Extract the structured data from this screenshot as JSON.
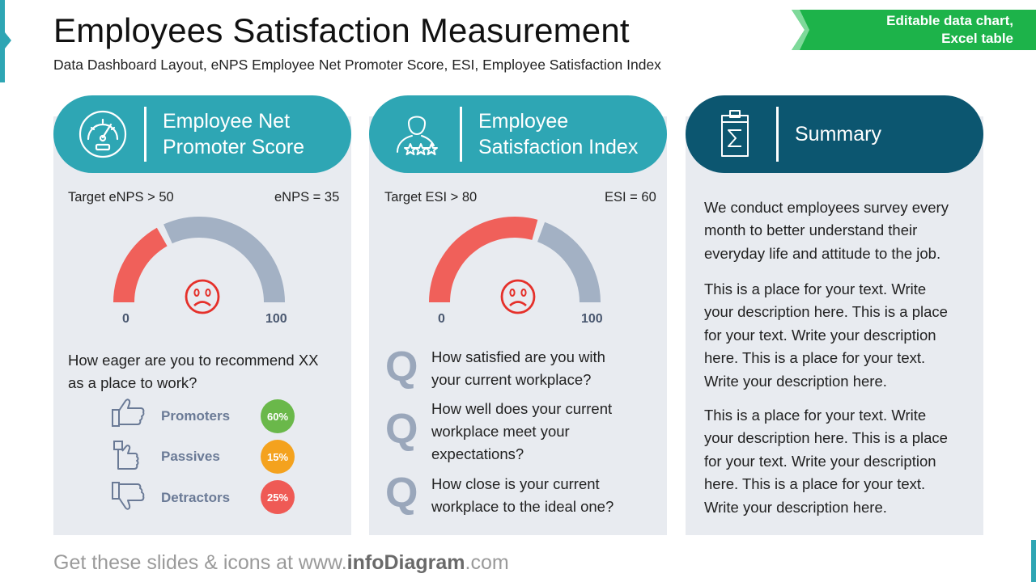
{
  "title": "Employees Satisfaction Measurement",
  "subtitle": "Data Dashboard Layout, eNPS Employee Net Promoter Score, ESI, Employee Satisfaction Index",
  "ribbon": {
    "line1": "Editable data chart,",
    "line2": "Excel table",
    "color": "#1db34a"
  },
  "colors": {
    "teal": "#2ea6b4",
    "dark_teal": "#0c5670",
    "gauge_red": "#f0605a",
    "gauge_gray": "#a3b1c4",
    "card_bg": "#e8ebf0"
  },
  "enps": {
    "header_line1": "Employee Net",
    "header_line2": "Promoter Score",
    "header_icon": "speedometer-icon",
    "target": "Target eNPS > 50",
    "value_label": "eNPS = 35",
    "gauge": {
      "min": 0,
      "max": 100,
      "value": 35,
      "min_label": "0",
      "max_label": "100",
      "face": "sad-face-icon"
    },
    "question_line1": "How eager are you to recommend XX",
    "question_line2": "as a place to work?",
    "categories": [
      {
        "label": "Promoters",
        "value": "60%",
        "icon": "thumbs-up-icon",
        "color": "#6ab84a"
      },
      {
        "label": "Passives",
        "value": "15%",
        "icon": "thumb-side-icon",
        "color": "#f4a21e"
      },
      {
        "label": "Detractors",
        "value": "25%",
        "icon": "thumbs-down-icon",
        "color": "#ef5a55"
      }
    ]
  },
  "esi": {
    "header_line1": "Employee",
    "header_line2": "Satisfaction Index",
    "header_icon": "person-rating-icon",
    "target": "Target ESI > 80",
    "value_label": "ESI = 60",
    "gauge": {
      "min": 0,
      "max": 100,
      "value": 60,
      "min_label": "0",
      "max_label": "100",
      "face": "sad-face-icon"
    },
    "q_letter": "Q",
    "questions": [
      {
        "line1": "How satisfied are you with",
        "line2": "your current workplace?",
        "line3": ""
      },
      {
        "line1": "How well does your current",
        "line2": "workplace meet your",
        "line3": "expectations?"
      },
      {
        "line1": "How close is your current",
        "line2": "workplace to the ideal one?",
        "line3": ""
      }
    ]
  },
  "summary": {
    "header": "Summary",
    "header_icon": "clipboard-sigma-icon",
    "paragraphs": [
      [
        "We conduct employees survey every",
        "month to better understand their",
        "everyday life and attitude to the job."
      ],
      [
        "This is a place for your text. Write",
        "your description here. This is a place",
        "for your text. Write your description",
        "here. This is a place for your text.",
        "Write your description here."
      ],
      [
        "This is a place for your text. Write",
        "your description here. This is a place",
        "for your text. Write your description",
        "here. This is a place for your text.",
        "Write your description here."
      ]
    ]
  },
  "footer": {
    "prefix": "Get these slides & icons at www.",
    "brand": "infoDiagram",
    "suffix": ".com"
  }
}
